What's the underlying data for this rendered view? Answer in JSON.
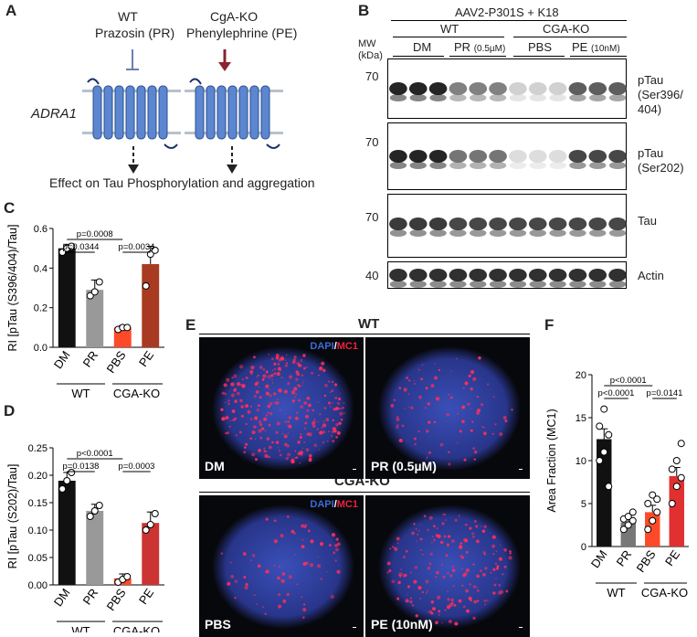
{
  "panels": {
    "A": "A",
    "B": "B",
    "C": "C",
    "D": "D",
    "E": "E",
    "F": "F"
  },
  "panelA": {
    "wt_label": "WT",
    "wt_drug": "Prazosin (PR)",
    "ko_label": "CgA-KO",
    "ko_drug": "Phenylephrine (PE)",
    "receptor": "ADRA1",
    "effect": "Effect on Tau Phosphorylation and aggregation"
  },
  "panelB": {
    "header": "AAV2-P301S + K18",
    "wt": "WT",
    "ko": "CGA-KO",
    "groups": [
      "DM",
      "PR",
      "PBS",
      "PE"
    ],
    "pr_conc": "(0.5µM)",
    "pe_conc": "(10nM)",
    "mw_title": "MW\n(kDa)",
    "mw": [
      "70",
      "70",
      "70",
      "40"
    ],
    "blots": [
      "pTau\n(Ser396/\n404)",
      "pTau\n(Ser202)",
      "Tau",
      "Actin"
    ]
  },
  "chart_data": [
    {
      "type": "bar",
      "panel": "C",
      "ylabel": "RI [pTau (S396/404)/Tau]",
      "categories": [
        "DM",
        "PR",
        "PBS",
        "PE"
      ],
      "values": [
        0.5,
        0.29,
        0.1,
        0.42
      ],
      "errors": [
        0.02,
        0.05,
        0.01,
        0.09
      ],
      "points": [
        [
          0.48,
          0.5,
          0.51
        ],
        [
          0.26,
          0.28,
          0.33
        ],
        [
          0.09,
          0.1,
          0.1
        ],
        [
          0.31,
          0.47,
          0.49
        ]
      ],
      "colors": [
        "#111111",
        "#999999",
        "#ff4a2a",
        "#a93a22"
      ],
      "ylim": [
        0,
        0.6
      ],
      "yticks": [
        "0.0",
        "0.2",
        "0.4",
        "0.6"
      ],
      "groups": [
        "WT",
        "CGA-KO"
      ],
      "pvalues": [
        "p=0.0008",
        "p=0.0344",
        "p=0.0034"
      ]
    },
    {
      "type": "bar",
      "panel": "D",
      "ylabel": "RI [pTau (S202)/Tau]",
      "categories": [
        "DM",
        "PR",
        "PBS",
        "PE"
      ],
      "values": [
        0.19,
        0.135,
        0.012,
        0.113
      ],
      "errors": [
        0.015,
        0.012,
        0.008,
        0.02
      ],
      "points": [
        [
          0.175,
          0.19,
          0.205
        ],
        [
          0.125,
          0.135,
          0.145
        ],
        [
          0.005,
          0.01,
          0.015
        ],
        [
          0.1,
          0.11,
          0.13
        ]
      ],
      "colors": [
        "#111111",
        "#999999",
        "#ff4a2a",
        "#cc3333"
      ],
      "ylim": [
        0,
        0.25
      ],
      "yticks": [
        "0.00",
        "0.05",
        "0.10",
        "0.15",
        "0.20",
        "0.25"
      ],
      "groups": [
        "WT",
        "CGA-KO"
      ],
      "pvalues": [
        "p<0.0001",
        "p=0.0138",
        "p=0.0003"
      ]
    },
    {
      "type": "bar",
      "panel": "F",
      "ylabel": "Area Fraction (MC1)",
      "categories": [
        "DM",
        "PR",
        "PBS",
        "PE"
      ],
      "values": [
        12.5,
        2.8,
        4.0,
        8.2
      ],
      "errors": [
        1.2,
        0.4,
        0.8,
        1.0
      ],
      "points": [
        [
          10,
          11,
          13,
          14,
          16,
          7
        ],
        [
          2,
          2.5,
          3,
          3.2,
          3.5,
          4
        ],
        [
          2,
          3,
          4,
          5,
          6,
          5.5
        ],
        [
          5,
          7,
          8,
          9,
          10,
          12
        ]
      ],
      "colors": [
        "#111111",
        "#777777",
        "#ff4a2a",
        "#e03030"
      ],
      "ylim": [
        0,
        20
      ],
      "yticks": [
        "0",
        "5",
        "10",
        "15",
        "20"
      ],
      "groups": [
        "WT",
        "CGA-KO"
      ],
      "pvalues": [
        "p<0.0001",
        "p<0.0001",
        "p=0.0141"
      ]
    }
  ],
  "panelE": {
    "wt": "WT",
    "ko": "CGA-KO",
    "stain_dapi": "DAPI",
    "stain_sep": "/",
    "stain_mc1": "MC1",
    "labels": [
      "DM",
      "PR (0.5µM)",
      "PBS",
      "PE (10nM)"
    ]
  }
}
